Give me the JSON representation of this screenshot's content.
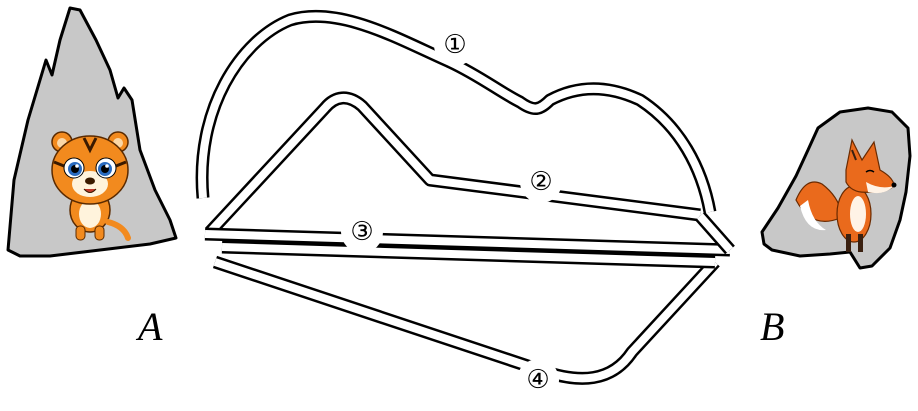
{
  "points": {
    "start_label": "A",
    "end_label": "B"
  },
  "routes": [
    {
      "label": "①"
    },
    {
      "label": "②"
    },
    {
      "label": "③"
    },
    {
      "label": "④"
    }
  ],
  "colors": {
    "rock": "#c8c8c8",
    "outline": "#000000",
    "tiger": "#f28a1e",
    "fox": "#ea6a1c"
  },
  "icons": {
    "start": "tiger-icon",
    "end": "fox-icon"
  }
}
